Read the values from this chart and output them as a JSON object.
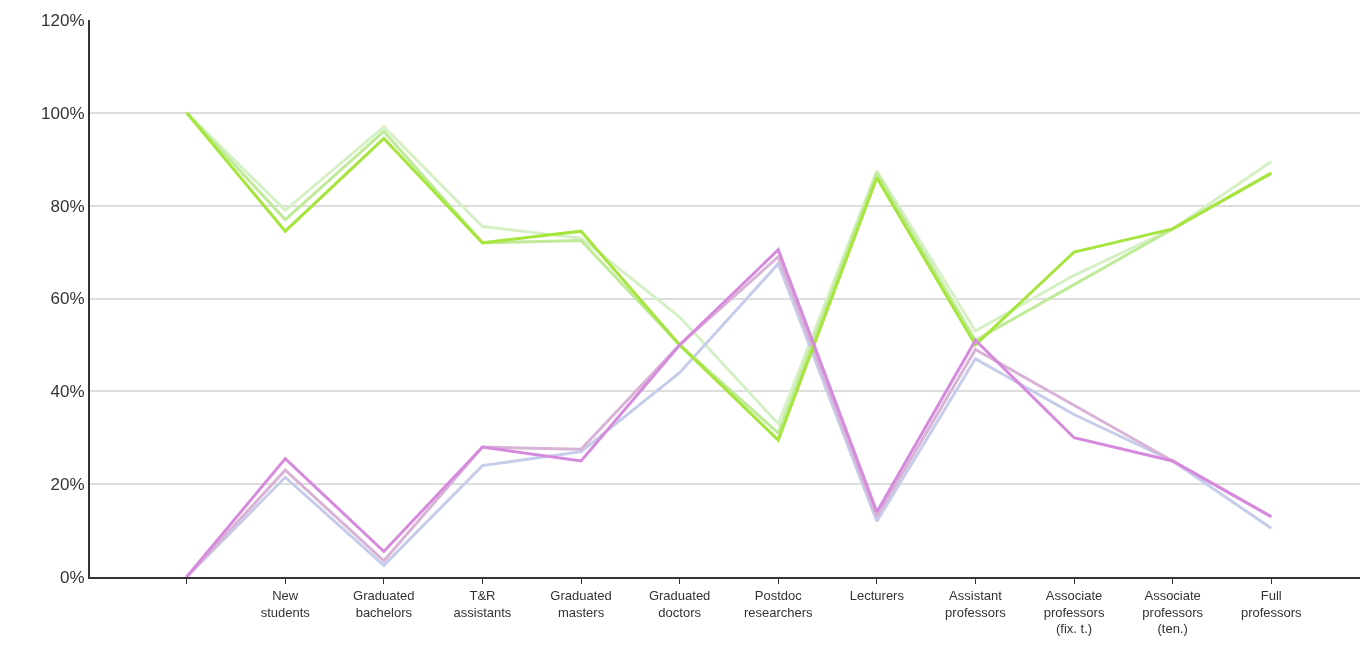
{
  "chart_data": {
    "type": "line",
    "categories": [
      null,
      "New\nstudents",
      "Graduated\nbachelors",
      "T&R\nassistants",
      "Graduated\nmasters",
      "Graduated\ndoctors",
      "Postdoc\nresearchers",
      "Lecturers",
      "Assistant\nprofessors",
      "Associate\nprofessors\n(fix. t.)",
      "Associate\nprofessors\n(ten.)",
      "Full\nprofessors"
    ],
    "series": [
      {
        "color": "#d6f0c6",
        "values": [
          100,
          79,
          97,
          75.5,
          73,
          56,
          33,
          87.5,
          53,
          65,
          75,
          89.5
        ]
      },
      {
        "color": "#c6cdea",
        "values": [
          0,
          21.5,
          2.5,
          24,
          27,
          44,
          67.5,
          12,
          47,
          35,
          25,
          10.5
        ]
      },
      {
        "color": "#bfeb98",
        "values": [
          100,
          77,
          96,
          72,
          72.5,
          50,
          31,
          87,
          51,
          63,
          75,
          87
        ]
      },
      {
        "color": "#d9b3d6",
        "values": [
          0,
          23,
          3.5,
          28,
          27.5,
          50,
          69,
          13,
          49,
          37,
          25,
          13
        ]
      },
      {
        "color": "#a6e43e",
        "values": [
          100,
          74.5,
          94.5,
          72,
          74.5,
          50,
          29.5,
          86,
          50,
          70,
          75,
          87
        ]
      },
      {
        "color": "#d68ade",
        "values": [
          0,
          25.5,
          5.5,
          28,
          25,
          50,
          70.5,
          14,
          51,
          30,
          25,
          13
        ]
      }
    ],
    "ylim": [
      0,
      120
    ],
    "yticks": [
      {
        "value": 0,
        "label": "0%"
      },
      {
        "value": 20,
        "label": "20%"
      },
      {
        "value": 40,
        "label": "40%"
      },
      {
        "value": 60,
        "label": "60%"
      },
      {
        "value": 80,
        "label": "80%"
      },
      {
        "value": 100,
        "label": "100%"
      },
      {
        "value": 120,
        "label": "120%"
      }
    ],
    "grid": "y",
    "marker": "none",
    "line_style": "solid"
  }
}
